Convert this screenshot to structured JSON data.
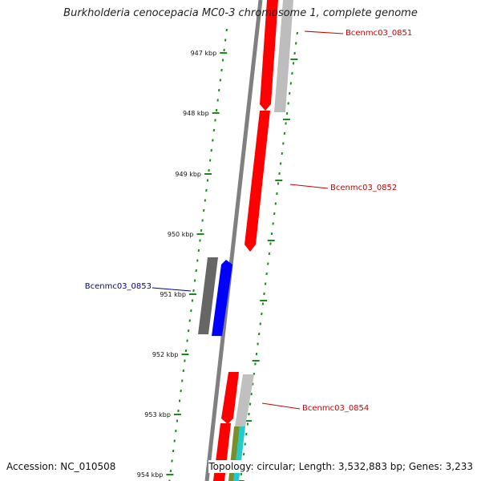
{
  "title": "Burkholderia cenocepacia MC0-3 chromosome 1, complete genome",
  "footer": {
    "accession": "Accession: NC_010508",
    "topology": "Topology: circular; Length: 3,532,883 bp; Genes: 3,233"
  },
  "colors": {
    "forward_gene": "#ff0000",
    "reverse_gene": "#0000ff",
    "label_forward": "#cc0000",
    "label_reverse": "#000099",
    "tick": "#1a8a1a",
    "backbone": "#808080"
  },
  "ticks": [
    "947 kbp",
    "948 kbp",
    "949 kbp",
    "950 kbp",
    "951 kbp",
    "952 kbp",
    "953 kbp",
    "954 kbp"
  ],
  "gene_labels": [
    {
      "text": "Bcenmc03_0851",
      "strand": "forward"
    },
    {
      "text": "Bcenmc03_0852",
      "strand": "forward"
    },
    {
      "text": "Bcenmc03_0853",
      "strand": "reverse"
    },
    {
      "text": "Bcenmc03_0854",
      "strand": "forward"
    }
  ]
}
